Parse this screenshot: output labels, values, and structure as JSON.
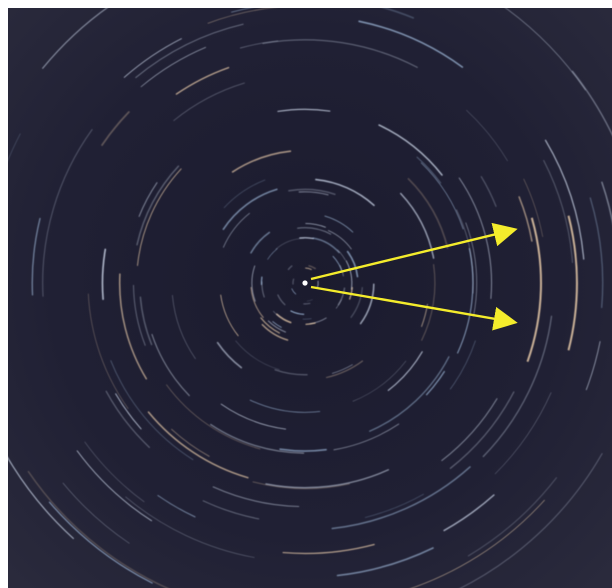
{
  "image": {
    "subject": "star-trails",
    "colors": {
      "sky_center": "#1c1c30",
      "sky_edge": "#262638",
      "trail_primary": "#c9d3e6",
      "trail_warm": "#e6c9a8",
      "trail_blue": "#a8c4e6",
      "pole_star": "#ffffff",
      "arrow": "#f4ec2c"
    },
    "annotations": [
      {
        "type": "arrow",
        "direction": "upper-right",
        "color": "#f4ec2c"
      },
      {
        "type": "arrow",
        "direction": "lower-right",
        "color": "#f4ec2c"
      }
    ]
  }
}
